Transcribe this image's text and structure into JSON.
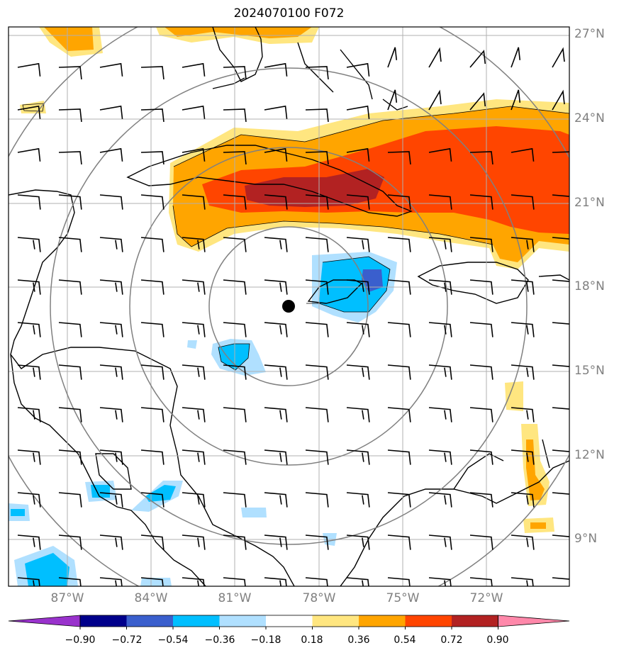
{
  "title": "2024070100 F072",
  "lat_labels": [
    "27°N",
    "24°N",
    "21°N",
    "18°N",
    "15°N",
    "12°N",
    "9°N"
  ],
  "lon_labels": [
    "87°W",
    "84°W",
    "81°W",
    "78°W",
    "75°W",
    "72°W"
  ],
  "colorbar": {
    "labels": [
      "−0.90",
      "−0.72",
      "−0.54",
      "−0.36",
      "−0.18",
      "0.18",
      "0.36",
      "0.54",
      "0.72",
      "0.90"
    ],
    "colors": [
      "#9932cc",
      "#00008b",
      "#3a5fcd",
      "#00bfff",
      "#b0e0ff",
      "#ffffff",
      "#ffe680",
      "#ffa500",
      "#ff4500",
      "#b22222",
      "#ff88aa"
    ]
  },
  "shading_colors": {
    "light_yellow": "#ffe680",
    "orange": "#ffa500",
    "red_orange": "#ff4500",
    "dark_red": "#b22222",
    "light_blue": "#b0e0ff",
    "deep_sky_blue": "#00bfff",
    "royal_blue": "#3a5fcd"
  },
  "center_marker": "storm-center-dot",
  "range_rings": 4
}
